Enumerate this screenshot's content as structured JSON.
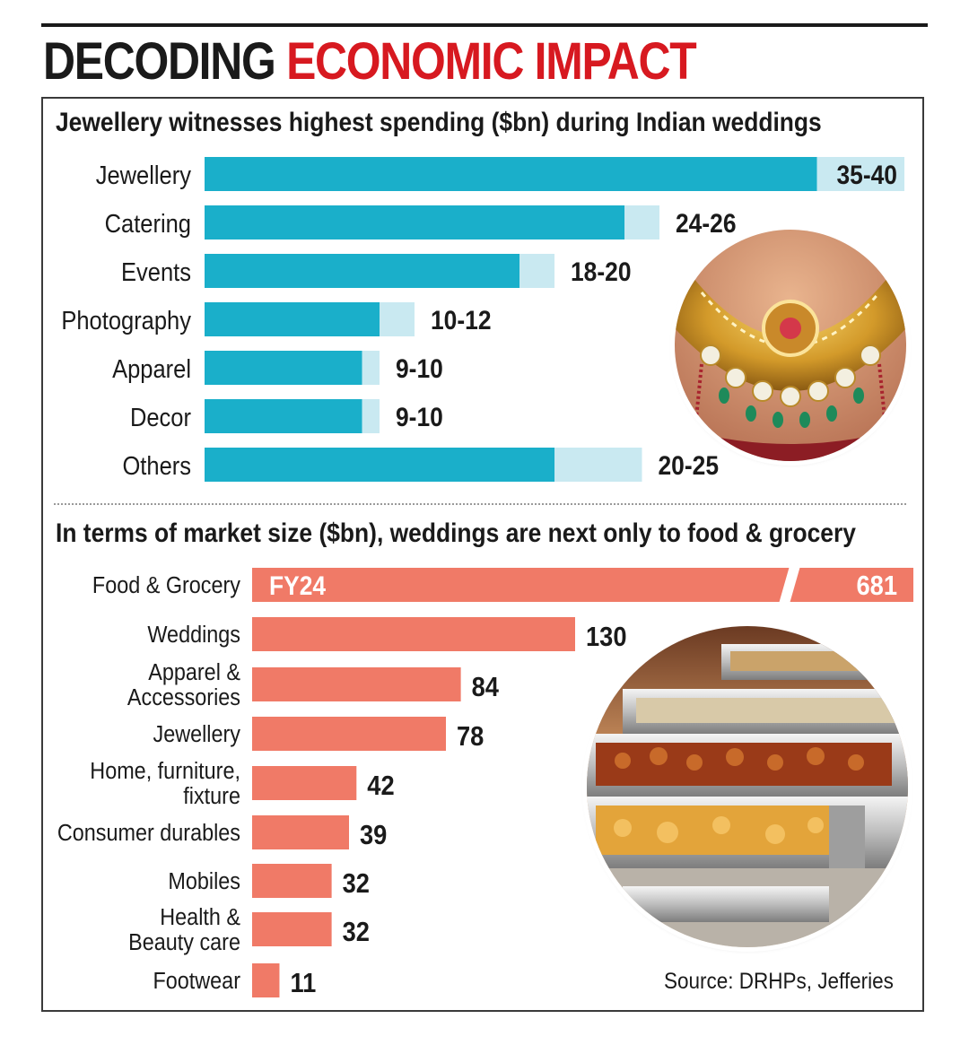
{
  "headline": {
    "dark": "DECODING",
    "red": "ECONOMIC IMPACT"
  },
  "colors": {
    "teal": "#1aafca",
    "teal_light": "#c9e9f1",
    "salmon": "#f07a67",
    "headline_red": "#d71920"
  },
  "source": "Source: DRHPs, Jefferies",
  "chart_data": [
    {
      "type": "bar",
      "orientation": "horizontal",
      "title": "Jewellery witnesses highest spending ($bn) during Indian weddings",
      "categories": [
        "Jewellery",
        "Catering",
        "Events",
        "Photography",
        "Apparel",
        "Decor",
        "Others"
      ],
      "series": [
        {
          "name": "low",
          "values": [
            35,
            24,
            18,
            10,
            9,
            9,
            20
          ]
        },
        {
          "name": "high",
          "values": [
            40,
            26,
            20,
            12,
            10,
            10,
            25
          ]
        }
      ],
      "labels": [
        "35-40",
        "24-26",
        "18-20",
        "10-12",
        "9-10",
        "9-10",
        "20-25"
      ],
      "xlim": [
        0,
        40
      ]
    },
    {
      "type": "bar",
      "orientation": "horizontal",
      "title": "In terms of market size ($bn), weddings are next only to food & grocery",
      "categories": [
        "Food & Grocery",
        "Weddings",
        "Apparel & Accessories",
        "Jewellery",
        "Home, furniture, fixture",
        "Consumer durables",
        "Mobiles",
        "Health & Beauty care",
        "Footwear"
      ],
      "category_lines": [
        [
          "Food & Grocery"
        ],
        [
          "Weddings"
        ],
        [
          "Apparel &",
          "Accessories"
        ],
        [
          "Jewellery"
        ],
        [
          "Home, furniture,",
          "fixture"
        ],
        [
          "Consumer durables"
        ],
        [
          "Mobiles"
        ],
        [
          "Health &",
          "Beauty care"
        ],
        [
          "Footwear"
        ]
      ],
      "values": [
        681,
        130,
        84,
        78,
        42,
        39,
        32,
        32,
        11
      ],
      "labels": [
        "681",
        "130",
        "84",
        "78",
        "42",
        "39",
        "32",
        "32",
        "11"
      ],
      "annotation": "FY24",
      "axis_break": true
    }
  ]
}
